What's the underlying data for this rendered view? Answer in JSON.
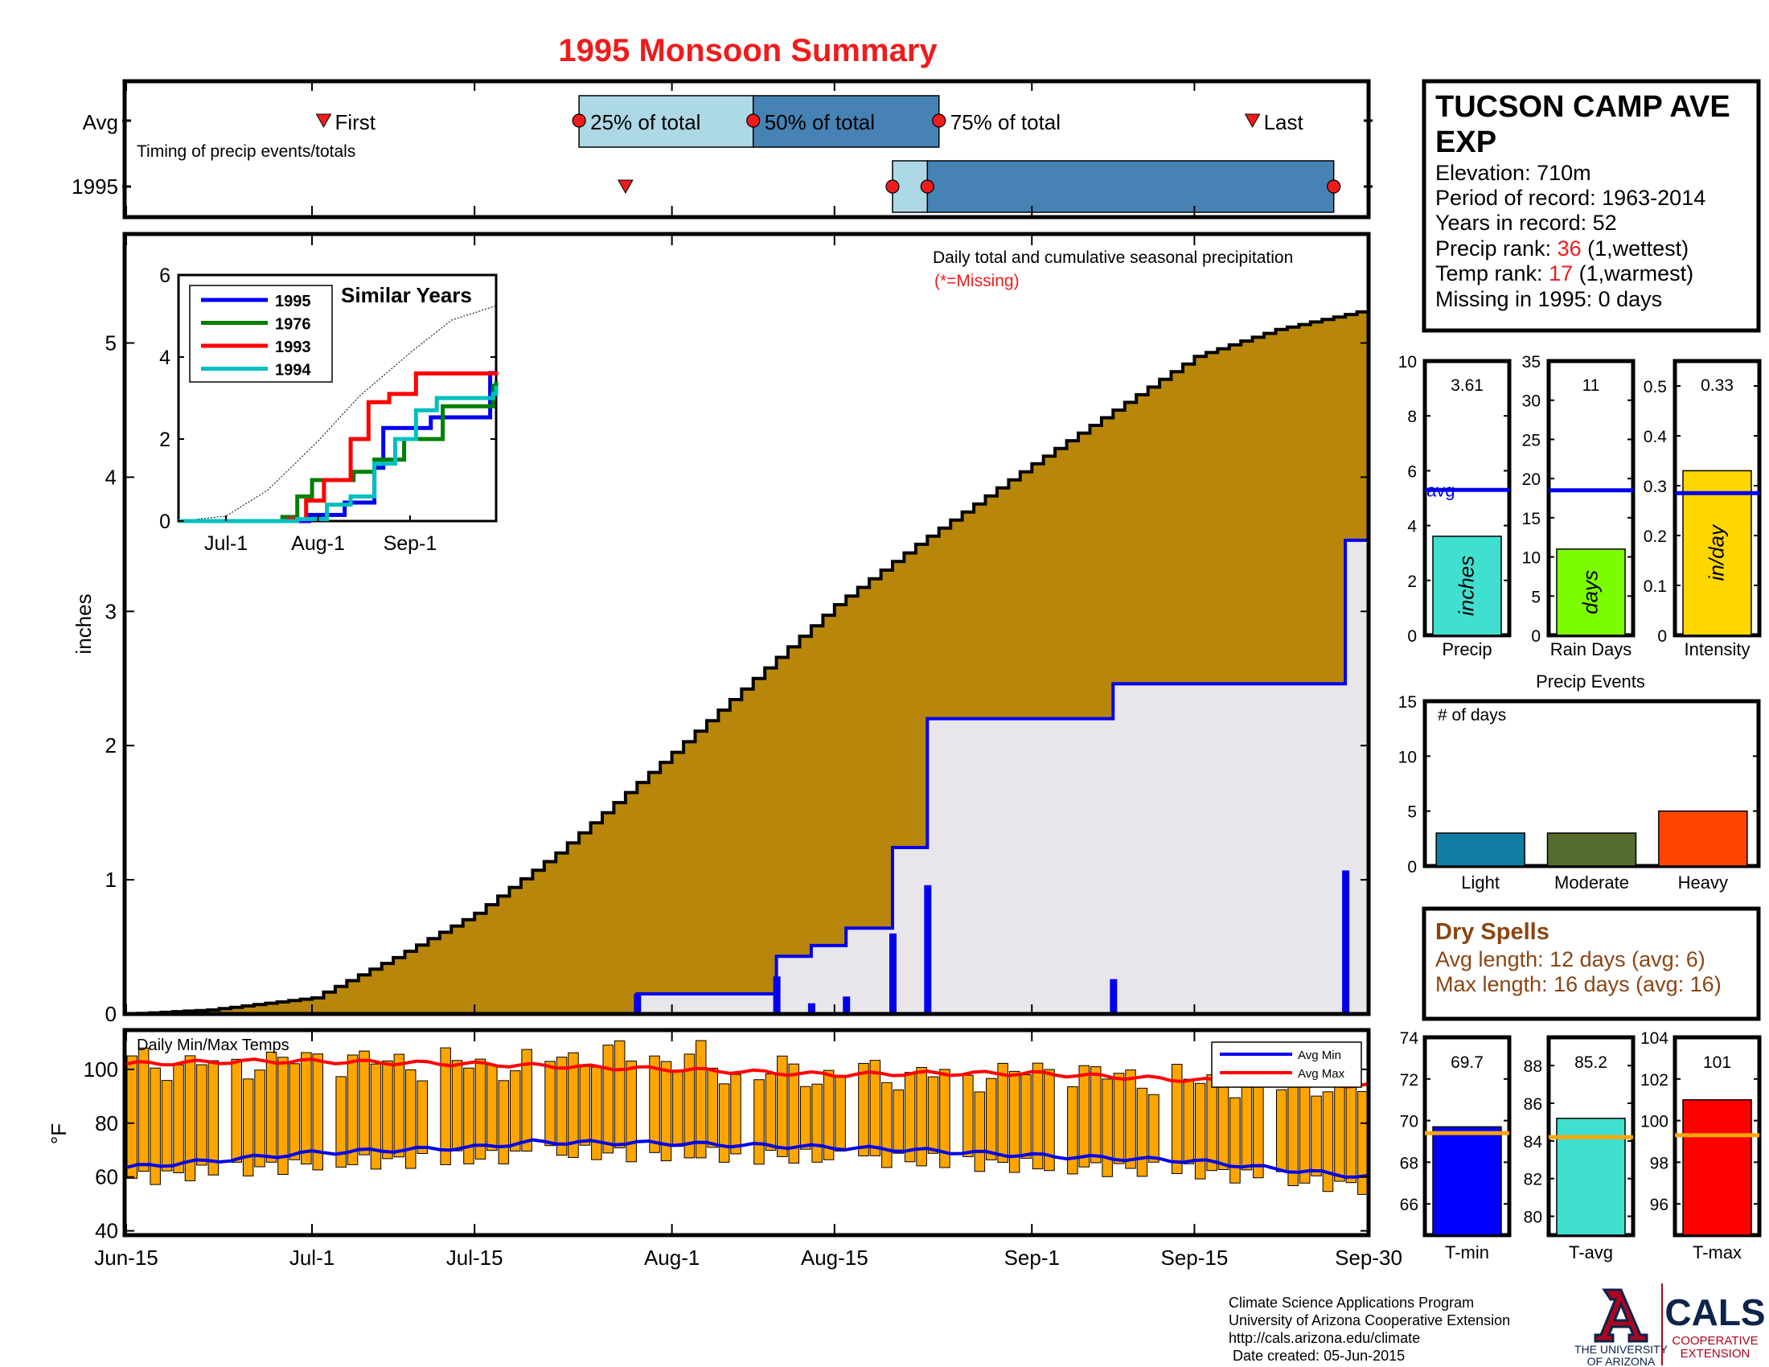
{
  "title": "1995 Monsoon Summary",
  "timing": {
    "row_labels": [
      "Avg",
      "1995"
    ],
    "caption": "Timing of precip events/totals",
    "labels": {
      "first": "First",
      "p25": "25% of total",
      "p50": "50% of total",
      "p75": "75% of total",
      "last": "Last"
    },
    "avg": {
      "first": "1995-07-02",
      "p25": "1995-07-24",
      "p50": "1995-08-08",
      "p75": "1995-08-24",
      "last": "1995-09-20"
    },
    "year": {
      "first": "1995-07-28",
      "p25": "1995-08-20",
      "p50": "1995-08-23",
      "p75": "1995-09-27"
    }
  },
  "station": {
    "name_line1": "TUCSON CAMP AVE",
    "name_line2": "EXP",
    "elevation": "Elevation: 710m",
    "period": "Period of record: 1963-2014",
    "years": "Years in record: 52",
    "precip_rank_label": "Precip rank: ",
    "precip_rank_value": "36",
    "precip_rank_note": " (1,wettest)",
    "temp_rank_label": "Temp rank: ",
    "temp_rank_value": "17",
    "temp_rank_note": " (1,warmest)",
    "missing": "Missing in 1995: 0 days"
  },
  "precip_chart": {
    "caption": "Daily total and cumulative seasonal precipitation",
    "missing_note": "(*=Missing)",
    "ylabel": "inches",
    "yticks": [
      0,
      1,
      2,
      3,
      4,
      5
    ],
    "ylim": [
      0,
      5.8
    ]
  },
  "dates_axis": {
    "ticks": [
      {
        "date": "1995-06-15",
        "label": "Jun-15"
      },
      {
        "date": "1995-07-01",
        "label": "Jul-1"
      },
      {
        "date": "1995-07-15",
        "label": "Jul-15"
      },
      {
        "date": "1995-08-01",
        "label": "Aug-1"
      },
      {
        "date": "1995-08-15",
        "label": "Aug-15"
      },
      {
        "date": "1995-09-01",
        "label": "Sep-1"
      },
      {
        "date": "1995-09-15",
        "label": "Sep-15"
      },
      {
        "date": "1995-09-30",
        "label": "Sep-30"
      }
    ]
  },
  "chart_data": {
    "type": "area",
    "x_range": [
      "1995-06-15",
      "1995-09-30"
    ],
    "avg_cumulative": [
      {
        "date": "1995-06-15",
        "value": 0
      },
      {
        "date": "1995-06-22",
        "value": 0.03
      },
      {
        "date": "1995-07-01",
        "value": 0.12
      },
      {
        "date": "1995-07-08",
        "value": 0.42
      },
      {
        "date": "1995-07-15",
        "value": 0.75
      },
      {
        "date": "1995-07-22",
        "value": 1.2
      },
      {
        "date": "1995-08-01",
        "value": 1.95
      },
      {
        "date": "1995-08-08",
        "value": 2.5
      },
      {
        "date": "1995-08-15",
        "value": 3.05
      },
      {
        "date": "1995-08-22",
        "value": 3.5
      },
      {
        "date": "1995-09-01",
        "value": 4.1
      },
      {
        "date": "1995-09-08",
        "value": 4.5
      },
      {
        "date": "1995-09-15",
        "value": 4.9
      },
      {
        "date": "1995-09-22",
        "value": 5.1
      },
      {
        "date": "1995-09-30",
        "value": 5.25
      }
    ],
    "daily_precip": [
      {
        "date": "1995-07-29",
        "value": 0.15
      },
      {
        "date": "1995-08-10",
        "value": 0.28
      },
      {
        "date": "1995-08-13",
        "value": 0.08
      },
      {
        "date": "1995-08-16",
        "value": 0.13
      },
      {
        "date": "1995-08-20",
        "value": 0.6
      },
      {
        "date": "1995-08-23",
        "value": 0.96
      },
      {
        "date": "1995-09-08",
        "value": 0.26
      },
      {
        "date": "1995-09-28",
        "value": 1.07
      }
    ]
  },
  "similar_years": {
    "title": "Similar Years",
    "yticks": [
      0,
      2,
      4,
      6
    ],
    "ylim": [
      0,
      6
    ],
    "x_ticks": [
      {
        "date": "1995-07-01",
        "label": "Jul-1"
      },
      {
        "date": "1995-08-01",
        "label": "Aug-1"
      },
      {
        "date": "1995-09-01",
        "label": "Sep-1"
      }
    ],
    "avg_cumulative": [
      {
        "date": "1995-06-15",
        "value": 0
      },
      {
        "date": "1995-07-01",
        "value": 0.12
      },
      {
        "date": "1995-07-15",
        "value": 0.75
      },
      {
        "date": "1995-08-01",
        "value": 1.95
      },
      {
        "date": "1995-08-15",
        "value": 3.05
      },
      {
        "date": "1995-09-01",
        "value": 4.1
      },
      {
        "date": "1995-09-15",
        "value": 4.9
      },
      {
        "date": "1995-09-30",
        "value": 5.25
      }
    ],
    "series": [
      {
        "name": "1995",
        "color": "#0000ee",
        "points": [
          [
            "1995-06-15",
            0
          ],
          [
            "1995-07-29",
            0.15
          ],
          [
            "1995-08-10",
            0.45
          ],
          [
            "1995-08-20",
            1.3
          ],
          [
            "1995-08-23",
            2.27
          ],
          [
            "1995-09-08",
            2.53
          ],
          [
            "1995-09-28",
            3.61
          ],
          [
            "1995-09-30",
            3.61
          ]
        ]
      },
      {
        "name": "1976",
        "color": "#008000",
        "points": [
          [
            "1995-06-15",
            0
          ],
          [
            "1995-07-20",
            0.1
          ],
          [
            "1995-07-25",
            0.6
          ],
          [
            "1995-07-30",
            1.0
          ],
          [
            "1995-08-13",
            1.2
          ],
          [
            "1995-08-20",
            1.5
          ],
          [
            "1995-08-30",
            2.0
          ],
          [
            "1995-09-12",
            2.8
          ],
          [
            "1995-09-29",
            3.3
          ],
          [
            "1995-09-30",
            3.4
          ]
        ]
      },
      {
        "name": "1993",
        "color": "#ff0000",
        "points": [
          [
            "1995-06-15",
            0
          ],
          [
            "1995-07-22",
            0.05
          ],
          [
            "1995-07-28",
            0.5
          ],
          [
            "1995-08-03",
            1.0
          ],
          [
            "1995-08-12",
            2.0
          ],
          [
            "1995-08-18",
            2.9
          ],
          [
            "1995-08-25",
            3.1
          ],
          [
            "1995-09-03",
            3.6
          ],
          [
            "1995-09-18",
            3.6
          ],
          [
            "1995-09-30",
            3.65
          ]
        ]
      },
      {
        "name": "1994",
        "color": "#00bfbf",
        "points": [
          [
            "1995-06-15",
            0
          ],
          [
            "1995-07-25",
            0.05
          ],
          [
            "1995-08-04",
            0.4
          ],
          [
            "1995-08-12",
            0.6
          ],
          [
            "1995-08-20",
            1.4
          ],
          [
            "1995-08-27",
            2.0
          ],
          [
            "1995-09-03",
            2.7
          ],
          [
            "1995-09-10",
            3.0
          ],
          [
            "1995-09-29",
            3.1
          ],
          [
            "1995-09-30",
            3.3
          ]
        ]
      }
    ]
  },
  "temps": {
    "caption": "Daily Min/Max Temps",
    "ylabel": "°F",
    "yticks": [
      40,
      60,
      80,
      100
    ],
    "ylim": [
      39,
      114
    ],
    "legend": {
      "min": "Avg Min",
      "max": "Avg Max"
    },
    "avg_min": [
      [
        "1995-06-15",
        63.5
      ],
      [
        "1995-07-01",
        69
      ],
      [
        "1995-07-15",
        71
      ],
      [
        "1995-07-20",
        73
      ],
      [
        "1995-08-01",
        72.5
      ],
      [
        "1995-08-15",
        71
      ],
      [
        "1995-08-22",
        70
      ],
      [
        "1995-09-01",
        68
      ],
      [
        "1995-09-15",
        66
      ],
      [
        "1995-09-22",
        63
      ],
      [
        "1995-09-30",
        60
      ]
    ],
    "avg_max": [
      [
        "1995-06-15",
        102
      ],
      [
        "1995-06-25",
        103
      ],
      [
        "1995-07-01",
        103
      ],
      [
        "1995-07-15",
        102
      ],
      [
        "1995-08-01",
        100
      ],
      [
        "1995-08-15",
        98
      ],
      [
        "1995-08-22",
        98.5
      ],
      [
        "1995-09-01",
        98.5
      ],
      [
        "1995-09-15",
        96
      ],
      [
        "1995-09-30",
        94
      ]
    ]
  },
  "bars_top": [
    {
      "label": "Precip",
      "unit": "inches",
      "value": 3.61,
      "value_text": "3.61",
      "avg": 5.3,
      "avg_label": "avg",
      "ylim": [
        0,
        10
      ],
      "yticks": [
        0,
        2,
        4,
        6,
        8,
        10
      ],
      "color": "#40e0d0"
    },
    {
      "label": "Rain Days",
      "unit": "days",
      "value": 11,
      "value_text": "11",
      "avg": 18.5,
      "ylim": [
        0,
        35
      ],
      "yticks": [
        0,
        5,
        10,
        15,
        20,
        25,
        30,
        35
      ],
      "color": "#7cfc00"
    },
    {
      "label": "Intensity",
      "unit": "in/day",
      "value": 0.33,
      "value_text": "0.33",
      "avg": 0.285,
      "ylim": [
        0,
        0.55
      ],
      "yticks": [
        0,
        0.1,
        0.2,
        0.3,
        0.4,
        0.5
      ],
      "color": "#ffd700"
    }
  ],
  "precip_events": {
    "title": "Precip Events",
    "caption": "# of days",
    "yticks": [
      0,
      5,
      10,
      15
    ],
    "ylim": [
      0,
      15
    ],
    "categories": [
      "Light",
      "Moderate",
      "Heavy"
    ],
    "values": [
      3,
      3,
      5
    ],
    "colors": [
      "#0f7ca4",
      "#556b2f",
      "#ff4500"
    ]
  },
  "dry_spells": {
    "title": "Dry Spells",
    "avg_line": "Avg length: 12 days (avg: 6)",
    "max_line": "Max length: 16 days (avg: 16)"
  },
  "temp_bars": [
    {
      "label": "T-min",
      "value": 69.7,
      "value_text": "69.7",
      "avg": 69.4,
      "ylim": [
        64.5,
        74
      ],
      "yticks": [
        66,
        68,
        70,
        72,
        74
      ],
      "color": "#0000ff"
    },
    {
      "label": "T-avg",
      "value": 85.2,
      "value_text": "85.2",
      "avg": 84.2,
      "ylim": [
        79,
        89.5
      ],
      "yticks": [
        80,
        82,
        84,
        86,
        88
      ],
      "color": "#40e0d0"
    },
    {
      "label": "T-max",
      "value": 101,
      "value_text": "101",
      "avg": 99.3,
      "ylim": [
        94.5,
        104
      ],
      "yticks": [
        96,
        98,
        100,
        102,
        104
      ],
      "color": "#ff0000"
    }
  ],
  "footer": {
    "lines": [
      "Climate Science Applications Program",
      "University of Arizona Cooperative Extension",
      "http://cals.arizona.edu/climate",
      " Date created: 05-Jun-2015"
    ],
    "ua_logo_text": [
      "THE UNIVERSITY",
      "OF ARIZONA"
    ],
    "cals_logo_text": "CALS",
    "cals_sub": [
      "COOPERATIVE",
      "EXTENSION"
    ]
  }
}
